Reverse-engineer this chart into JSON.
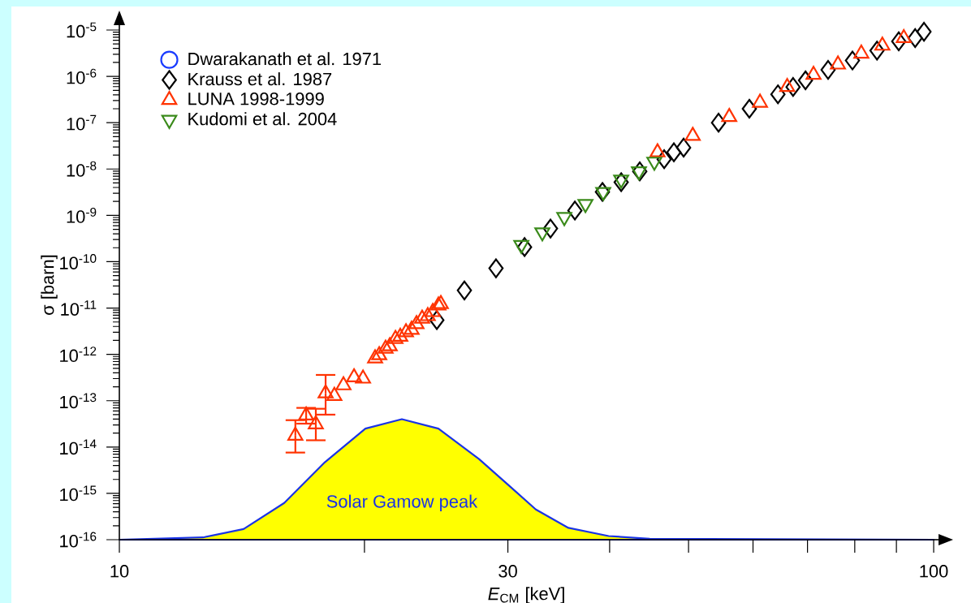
{
  "chart_data": {
    "type": "scatter",
    "xlabel": "*E*$_{CM}$ [keV]",
    "ylabel": "σ [barn]",
    "log": "xy",
    "legend": "top left",
    "xlim": [
      10,
      100
    ],
    "ylim": [
      1e-16,
      1e-05
    ],
    "xticks": [
      10,
      {
        "value": 20,
        "label": null
      },
      30,
      {
        "value": 40,
        "label": null
      },
      {
        "value": 50,
        "label": null
      },
      {
        "value": 60,
        "label": null
      },
      {
        "value": 70,
        "label": null
      },
      {
        "value": 80,
        "label": null
      },
      {
        "value": 90,
        "label": null
      },
      100
    ],
    "yticks": [
      {
        "value": 1e-16,
        "label": "10$^{-16}$"
      },
      {
        "value": 1e-15,
        "label": "10$^{-15}$"
      },
      {
        "value": 1e-14,
        "label": "10$^{-14}$"
      },
      {
        "value": 1e-13,
        "label": "10$^{-13}$"
      },
      {
        "value": 1e-12,
        "label": "10$^{-12}$"
      },
      {
        "value": 1e-11,
        "label": "10$^{-11}$"
      },
      {
        "value": 1e-10,
        "label": "10$^{-10}$"
      },
      {
        "value": 1e-09,
        "label": "10$^{-9}$"
      },
      {
        "value": 1e-08,
        "label": "10$^{-8}$"
      },
      {
        "value": 1e-07,
        "label": "10$^{-7}$"
      },
      {
        "value": 1e-06,
        "label": "10$^{-6}$"
      },
      {
        "value": 1e-05,
        "label": "10$^{-5}$"
      }
    ],
    "series": [
      {
        "name": "Solar Gamow peak",
        "type": "area",
        "color": "#1a33e6",
        "x": [
          10,
          12.67,
          14.21,
          15.94,
          17.88,
          20.05,
          22.23,
          24.65,
          27.65,
          30.2,
          32.47,
          35.6,
          39.9,
          44.8,
          100
        ],
        "values": [
          1e-16,
          1.12e-16,
          1.7e-16,
          6.2e-16,
          4.7e-15,
          2.5e-14,
          4e-14,
          2.5e-14,
          5.5e-15,
          1.4e-15,
          4.5e-16,
          1.8e-16,
          1.2e-16,
          1.05e-16,
          1e-16
        ]
      },
      {
        "name": "Dwarakanath et al. 1971",
        "marker": "circle",
        "color": "#1a3cff"
      },
      {
        "name": "Krauss et al. 1987",
        "marker": "diamond",
        "color": "#000000",
        "x": [
          24.54,
          26.53,
          29.01,
          31.45,
          33.84,
          36.26,
          39.2,
          41.33,
          43.56,
          46.67,
          47.97,
          49.31,
          54.43,
          59.38,
          64.38,
          67.2,
          69.6,
          74.2,
          79.5,
          85.2,
          90.6,
          94.9,
          97.3
        ],
        "values": [
          5.5e-12,
          2.4e-11,
          7.2e-11,
          2.07e-10,
          5.2e-10,
          1.27e-09,
          3.2e-09,
          5.2e-09,
          8.9e-09,
          1.63e-08,
          2.3e-08,
          2.9e-08,
          1e-07,
          2e-07,
          4.1e-07,
          5.9e-07,
          8.2e-07,
          1.38e-06,
          2.2e-06,
          3.6e-06,
          5.7e-06,
          6.7e-06,
          9.2e-06
        ]
      },
      {
        "name": "LUNA 1998-1999",
        "marker": "triangle",
        "color": "#ff3300",
        "x": [
          16.45,
          16.96,
          17.43,
          17.92,
          18.37,
          18.85,
          19.42,
          19.92,
          20.61,
          20.85,
          21.23,
          21.48,
          21.83,
          22.13,
          22.49,
          22.85,
          23.17,
          23.54,
          23.92,
          24.26,
          24.65,
          24.82,
          45.8,
          50.6,
          56.1,
          61.2,
          66.1,
          71.2,
          76.3,
          81.5,
          86.5,
          91.9
        ],
        "values": [
          1.76e-14,
          4.8e-14,
          3.1e-14,
          1.44e-13,
          1.27e-13,
          2.15e-13,
          3.2e-13,
          3e-13,
          8.2e-13,
          9.6e-13,
          1.33e-12,
          1.5e-12,
          2.15e-12,
          2.4e-12,
          3e-12,
          3.4e-12,
          4.5e-12,
          5.9e-12,
          6.7e-12,
          8.2e-12,
          1.13e-11,
          1.22e-11,
          2.3e-08,
          5.2e-08,
          1.33e-07,
          2.7e-07,
          5.9e-07,
          1.08e-06,
          1.8e-06,
          3.1e-06,
          4.6e-06,
          6.7e-06
        ],
        "errors": [
          [
            7.6e-15,
            3.8e-14
          ],
          [
            3.2e-14,
            7e-14
          ],
          [
            1.4e-14,
            6.7e-14
          ],
          [
            5e-14,
            3.6e-13
          ],
          null,
          null,
          null,
          null,
          null,
          null,
          null,
          null,
          null,
          null,
          null,
          null,
          null,
          null,
          null,
          null,
          null,
          null,
          null,
          null,
          null,
          null,
          null,
          null,
          null,
          null,
          null,
          null
        ]
      },
      {
        "name": "Kudomi et al. 2004",
        "marker": "triangle_down",
        "color": "#3a8a1a",
        "x": [
          31.16,
          33.07,
          35.19,
          37.36,
          39.29,
          41.33,
          43.46,
          45.39
        ],
        "values": [
          2.3e-10,
          4.3e-10,
          9.2e-10,
          1.76e-09,
          3.2e-09,
          5.9e-09,
          8.9e-09,
          1.44e-08
        ]
      }
    ]
  }
}
